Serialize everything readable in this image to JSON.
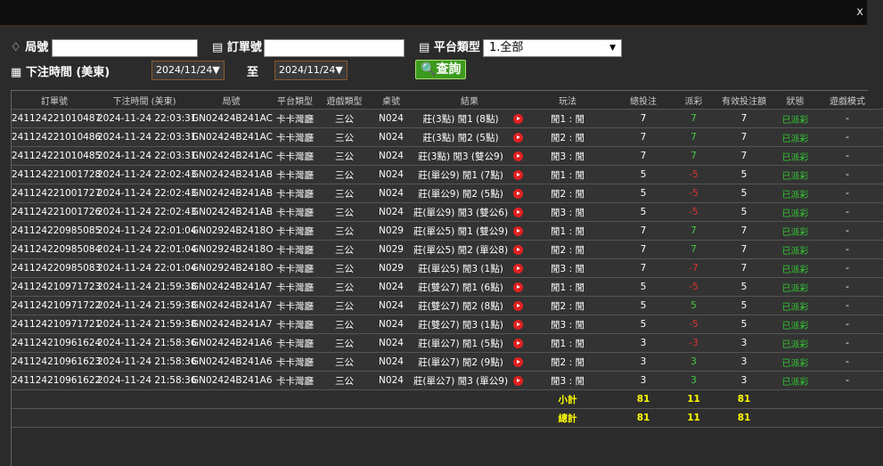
{
  "filters": {
    "round_label": "局號",
    "order_label": "訂單號",
    "platform_label": "平台類型",
    "platform_value": "1.全部",
    "time_label": "下注時間 (美東)",
    "date_from": "2024/11/24",
    "to_label": "至",
    "date_to": "2024/11/24",
    "search_button": "查詢"
  },
  "table": {
    "headers": [
      "訂單號",
      "下注時間 (美東)",
      "局號",
      "平台類型",
      "遊戲類型",
      "桌號",
      "結果",
      "玩法",
      "總投注",
      "派彩",
      "有效投注額",
      "狀態",
      "遊戲模式"
    ],
    "rows": [
      [
        "241124221010487",
        "2024-11-24 22:03:31",
        "GN02424B241AC",
        "卡卡灣廳",
        "三公",
        "N024",
        "莊(3點) 閒1 (8點)",
        "閒1 : 閒",
        7,
        7,
        7,
        "已派彩",
        "-"
      ],
      [
        "241124221010486",
        "2024-11-24 22:03:31",
        "GN02424B241AC",
        "卡卡灣廳",
        "三公",
        "N024",
        "莊(3點) 閒2 (5點)",
        "閒2 : 閒",
        7,
        7,
        7,
        "已派彩",
        "-"
      ],
      [
        "241124221010485",
        "2024-11-24 22:03:31",
        "GN02424B241AC",
        "卡卡灣廳",
        "三公",
        "N024",
        "莊(3點) 閒3 (雙公9)",
        "閒3 : 閒",
        7,
        7,
        7,
        "已派彩",
        "-"
      ],
      [
        "241124221001728",
        "2024-11-24 22:02:43",
        "GN02424B241AB",
        "卡卡灣廳",
        "三公",
        "N024",
        "莊(單公9) 閒1 (7點)",
        "閒1 : 閒",
        5,
        -5,
        5,
        "已派彩",
        "-"
      ],
      [
        "241124221001727",
        "2024-11-24 22:02:43",
        "GN02424B241AB",
        "卡卡灣廳",
        "三公",
        "N024",
        "莊(單公9) 閒2 (5點)",
        "閒2 : 閒",
        5,
        -5,
        5,
        "已派彩",
        "-"
      ],
      [
        "241124221001726",
        "2024-11-24 22:02:43",
        "GN02424B241AB",
        "卡卡灣廳",
        "三公",
        "N024",
        "莊(單公9) 閒3 (雙公6)",
        "閒3 : 閒",
        5,
        -5,
        5,
        "已派彩",
        "-"
      ],
      [
        "241124220985085",
        "2024-11-24 22:01:04",
        "GN02924B2418O",
        "卡卡灣廳",
        "三公",
        "N029",
        "莊(單公5) 閒1 (雙公9)",
        "閒1 : 閒",
        7,
        7,
        7,
        "已派彩",
        "-"
      ],
      [
        "241124220985084",
        "2024-11-24 22:01:04",
        "GN02924B2418O",
        "卡卡灣廳",
        "三公",
        "N029",
        "莊(單公5) 閒2 (單公8)",
        "閒2 : 閒",
        7,
        7,
        7,
        "已派彩",
        "-"
      ],
      [
        "241124220985083",
        "2024-11-24 22:01:04",
        "GN02924B2418O",
        "卡卡灣廳",
        "三公",
        "N029",
        "莊(單公5) 閒3 (1點)",
        "閒3 : 閒",
        7,
        -7,
        7,
        "已派彩",
        "-"
      ],
      [
        "241124210971723",
        "2024-11-24 21:59:38",
        "GN02424B241A7",
        "卡卡灣廳",
        "三公",
        "N024",
        "莊(雙公7) 閒1 (6點)",
        "閒1 : 閒",
        5,
        -5,
        5,
        "已派彩",
        "-"
      ],
      [
        "241124210971722",
        "2024-11-24 21:59:38",
        "GN02424B241A7",
        "卡卡灣廳",
        "三公",
        "N024",
        "莊(雙公7) 閒2 (8點)",
        "閒2 : 閒",
        5,
        5,
        5,
        "已派彩",
        "-"
      ],
      [
        "241124210971721",
        "2024-11-24 21:59:38",
        "GN02424B241A7",
        "卡卡灣廳",
        "三公",
        "N024",
        "莊(雙公7) 閒3 (1點)",
        "閒3 : 閒",
        5,
        -5,
        5,
        "已派彩",
        "-"
      ],
      [
        "241124210961624",
        "2024-11-24 21:58:36",
        "GN02424B241A6",
        "卡卡灣廳",
        "三公",
        "N024",
        "莊(單公7) 閒1 (5點)",
        "閒1 : 閒",
        3,
        -3,
        3,
        "已派彩",
        "-"
      ],
      [
        "241124210961623",
        "2024-11-24 21:58:36",
        "GN02424B241A6",
        "卡卡灣廳",
        "三公",
        "N024",
        "莊(單公7) 閒2 (9點)",
        "閒2 : 閒",
        3,
        3,
        3,
        "已派彩",
        "-"
      ],
      [
        "241124210961622",
        "2024-11-24 21:58:36",
        "GN02424B241A6",
        "卡卡灣廳",
        "三公",
        "N024",
        "莊(單公7) 閒3 (單公9)",
        "閒3 : 閒",
        3,
        3,
        3,
        "已派彩",
        "-"
      ]
    ],
    "subtotal": {
      "label": "小計",
      "values": [
        81,
        11,
        81
      ]
    },
    "total": {
      "label": "總計",
      "values": [
        81,
        11,
        81
      ]
    }
  }
}
